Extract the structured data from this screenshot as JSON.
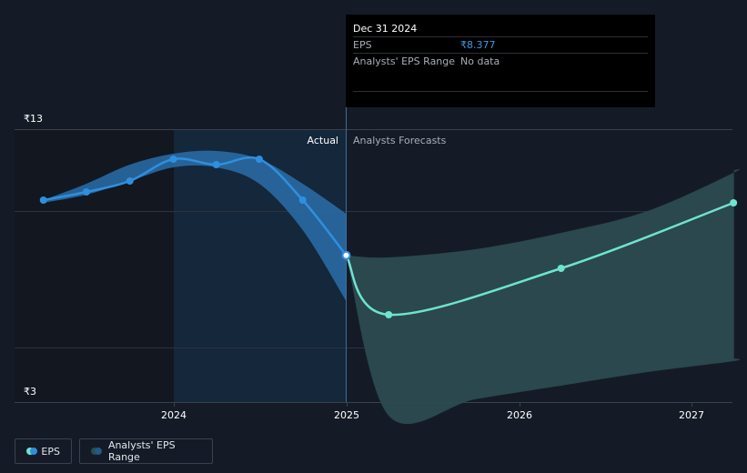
{
  "tooltip": {
    "date": "Dec 31 2024",
    "eps_label": "EPS",
    "eps_value": "₹8.377",
    "range_label": "Analysts' EPS Range",
    "range_value": "No data"
  },
  "labels": {
    "actual": "Actual",
    "forecast": "Analysts Forecasts"
  },
  "legend": {
    "eps": "EPS",
    "range": "Analysts' EPS Range"
  },
  "colors": {
    "background": "#151b26",
    "actual_line": "#2f8fdf",
    "actual_band": "#2a6faa",
    "forecast_line": "#6ee3d1",
    "forecast_band": "#2b4b4f",
    "tooltip_eps": "#3d9ae3"
  },
  "chart_data": {
    "type": "line",
    "y_ticks": [
      "₹13",
      "₹3"
    ],
    "ylim": [
      3,
      13
    ],
    "x_ticks": [
      "2024",
      "2025",
      "2026",
      "2027"
    ],
    "xlim": [
      "2023-01-15",
      "2027-04-01"
    ],
    "divider_date": "2024-12-31",
    "series": [
      {
        "name": "EPS",
        "kind": "actual",
        "points": [
          [
            "2023-03-31",
            10.4
          ],
          [
            "2023-06-30",
            10.7
          ],
          [
            "2023-09-30",
            11.1
          ],
          [
            "2023-12-31",
            11.9
          ],
          [
            "2024-03-31",
            11.7
          ],
          [
            "2024-06-30",
            11.9
          ],
          [
            "2024-09-30",
            10.4
          ],
          [
            "2024-12-31",
            8.377
          ]
        ]
      },
      {
        "name": "EPS",
        "kind": "forecast",
        "points": [
          [
            "2024-12-31",
            8.377
          ],
          [
            "2025-03-31",
            6.2
          ],
          [
            "2026-03-31",
            7.9
          ],
          [
            "2027-03-31",
            10.3
          ]
        ]
      }
    ],
    "bands": [
      {
        "name": "Analysts' EPS Range",
        "kind": "actual",
        "upper": [
          [
            "2023-03-31",
            10.4
          ],
          [
            "2023-06-30",
            11.0
          ],
          [
            "2023-09-30",
            11.7
          ],
          [
            "2023-12-31",
            12.1
          ],
          [
            "2024-03-31",
            12.2
          ],
          [
            "2024-06-30",
            11.9
          ],
          [
            "2024-09-30",
            11.0
          ],
          [
            "2024-12-31",
            9.9
          ]
        ],
        "lower": [
          [
            "2023-03-31",
            10.3
          ],
          [
            "2023-06-30",
            10.6
          ],
          [
            "2023-09-30",
            11.1
          ],
          [
            "2023-12-31",
            11.6
          ],
          [
            "2024-03-31",
            11.6
          ],
          [
            "2024-06-30",
            11.0
          ],
          [
            "2024-09-30",
            9.3
          ],
          [
            "2024-12-31",
            6.7
          ]
        ]
      },
      {
        "name": "Analysts' EPS Range",
        "kind": "forecast",
        "upper": [
          [
            "2024-12-31",
            8.377
          ],
          [
            "2025-03-31",
            8.3
          ],
          [
            "2025-09-30",
            8.6
          ],
          [
            "2026-03-31",
            9.2
          ],
          [
            "2026-09-30",
            10.0
          ],
          [
            "2027-03-31",
            11.4
          ],
          [
            "2027-04-01",
            11.5
          ]
        ],
        "lower": [
          [
            "2024-12-31",
            8.377
          ],
          [
            "2025-03-31",
            2.5
          ],
          [
            "2025-09-30",
            3.1
          ],
          [
            "2026-03-31",
            3.6
          ],
          [
            "2026-09-30",
            4.1
          ],
          [
            "2027-03-31",
            4.5
          ],
          [
            "2027-04-01",
            4.6
          ]
        ]
      }
    ]
  }
}
